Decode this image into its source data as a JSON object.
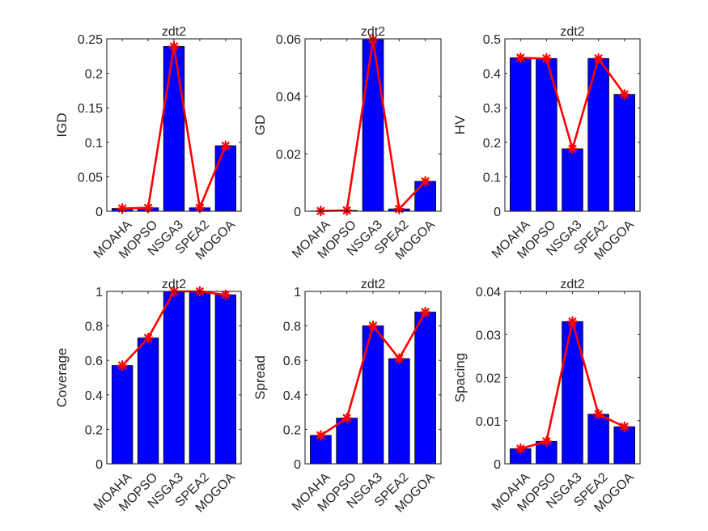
{
  "figure": {
    "layout": "2x3 subplots"
  },
  "chart_data": [
    {
      "type": "bar",
      "overlay": "line",
      "title": "zdt2",
      "xlabel": "",
      "ylabel": "IGD",
      "categories": [
        "MOAHA",
        "MOPSO",
        "NSGA3",
        "SPEA2",
        "MOGOA"
      ],
      "values": [
        0.004,
        0.005,
        0.239,
        0.005,
        0.095
      ],
      "ylim": [
        0,
        0.25
      ],
      "yticks": [
        0,
        0.05,
        0.1,
        0.15,
        0.2,
        0.25
      ],
      "ytick_labels": [
        "0",
        "0.05",
        "0.1",
        "0.15",
        "0.2",
        "0.25"
      ],
      "bar_color": "#0000FF",
      "line_color": "#FF0000",
      "marker": "asterisk",
      "grid": false
    },
    {
      "type": "bar",
      "overlay": "line",
      "title": "zdt2",
      "xlabel": "",
      "ylabel": "GD",
      "categories": [
        "MOAHA",
        "MOPSO",
        "NSGA3",
        "SPEA2",
        "MOGOA"
      ],
      "values": [
        0.0001,
        0.0003,
        0.0597,
        0.0008,
        0.0104
      ],
      "ylim": [
        0,
        0.06
      ],
      "yticks": [
        0,
        0.02,
        0.04,
        0.06
      ],
      "ytick_labels": [
        "0",
        "0.02",
        "0.04",
        "0.06"
      ],
      "bar_color": "#0000FF",
      "line_color": "#FF0000",
      "marker": "asterisk",
      "grid": false
    },
    {
      "type": "bar",
      "overlay": "line",
      "title": "zdt2",
      "xlabel": "",
      "ylabel": "HV",
      "categories": [
        "MOAHA",
        "MOPSO",
        "NSGA3",
        "SPEA2",
        "MOGOA"
      ],
      "values": [
        0.445,
        0.443,
        0.181,
        0.443,
        0.339
      ],
      "ylim": [
        0,
        0.5
      ],
      "yticks": [
        0,
        0.1,
        0.2,
        0.3,
        0.4,
        0.5
      ],
      "ytick_labels": [
        "0",
        "0.1",
        "0.2",
        "0.3",
        "0.4",
        "0.5"
      ],
      "bar_color": "#0000FF",
      "line_color": "#FF0000",
      "marker": "asterisk",
      "grid": false
    },
    {
      "type": "bar",
      "overlay": "line",
      "title": "zdt2",
      "xlabel": "",
      "ylabel": "Coverage",
      "categories": [
        "MOAHA",
        "MOPSO",
        "NSGA3",
        "SPEA2",
        "MOGOA"
      ],
      "values": [
        0.57,
        0.73,
        1.0,
        1.0,
        0.98
      ],
      "ylim": [
        0,
        1
      ],
      "yticks": [
        0,
        0.2,
        0.4,
        0.6,
        0.8,
        1
      ],
      "ytick_labels": [
        "0",
        "0.2",
        "0.4",
        "0.6",
        "0.8",
        "1"
      ],
      "bar_color": "#0000FF",
      "line_color": "#FF0000",
      "marker": "asterisk",
      "grid": false
    },
    {
      "type": "bar",
      "overlay": "line",
      "title": "zdt2",
      "xlabel": "",
      "ylabel": "Spread",
      "categories": [
        "MOAHA",
        "MOPSO",
        "NSGA3",
        "SPEA2",
        "MOGOA"
      ],
      "values": [
        0.165,
        0.265,
        0.8,
        0.61,
        0.88
      ],
      "ylim": [
        0,
        1
      ],
      "yticks": [
        0,
        0.2,
        0.4,
        0.6,
        0.8,
        1
      ],
      "ytick_labels": [
        "0",
        "0.2",
        "0.4",
        "0.6",
        "0.8",
        "1"
      ],
      "bar_color": "#0000FF",
      "line_color": "#FF0000",
      "marker": "asterisk",
      "grid": false
    },
    {
      "type": "bar",
      "overlay": "line",
      "title": "zdt2",
      "xlabel": "",
      "ylabel": "Spacing",
      "categories": [
        "MOAHA",
        "MOPSO",
        "NSGA3",
        "SPEA2",
        "MOGOA"
      ],
      "values": [
        0.0035,
        0.0052,
        0.033,
        0.0115,
        0.0086
      ],
      "ylim": [
        0,
        0.04
      ],
      "yticks": [
        0,
        0.01,
        0.02,
        0.03,
        0.04
      ],
      "ytick_labels": [
        "0",
        "0.01",
        "0.02",
        "0.03",
        "0.04"
      ],
      "bar_color": "#0000FF",
      "line_color": "#FF0000",
      "marker": "asterisk",
      "grid": false
    }
  ]
}
